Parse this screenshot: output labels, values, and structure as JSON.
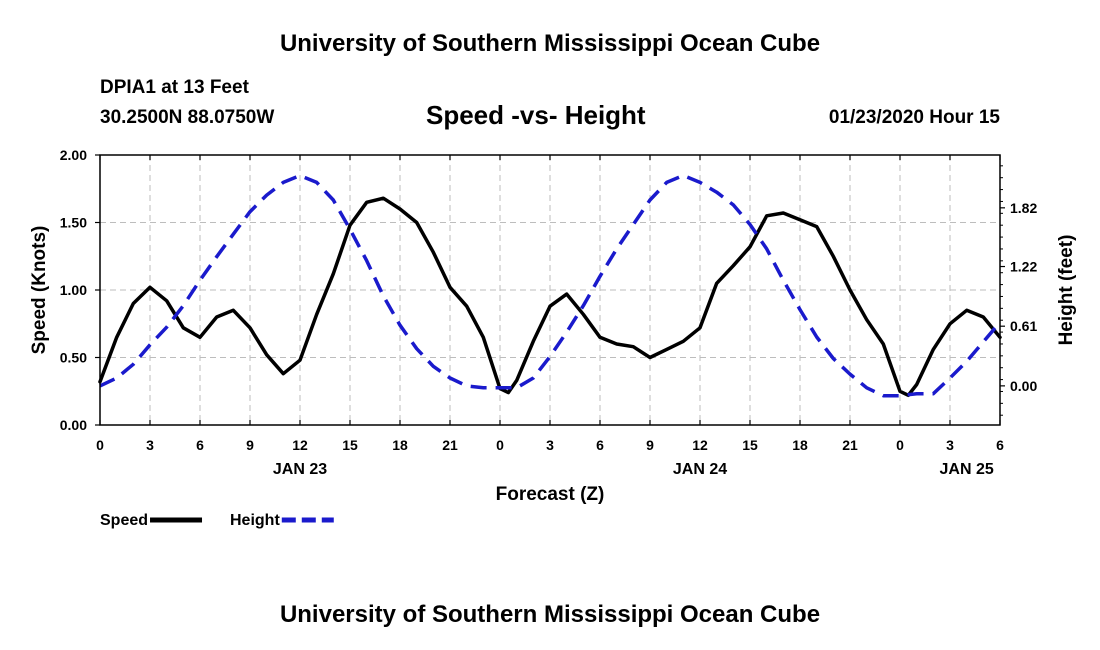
{
  "header": {
    "title": "University of Southern Mississippi Ocean Cube",
    "station": "DPIA1 at 13 Feet",
    "coords": "30.2500N 88.0750W",
    "date": "01/23/2020 Hour 15"
  },
  "footer": {
    "title": "University of Southern Mississippi Ocean Cube"
  },
  "chart_data": {
    "type": "line",
    "title": "Speed -vs- Height",
    "xlabel": "Forecast (Z)",
    "ylabel": "Speed (Knots)",
    "y2label": "Height (feet)",
    "x_units": "hours from 2020-01-23 00Z",
    "xlim": [
      0,
      54
    ],
    "ylim": [
      0,
      2.0
    ],
    "y2lim": [
      -0.4,
      2.36
    ],
    "x_ticks": [
      {
        "x": 0,
        "label": "0"
      },
      {
        "x": 3,
        "label": "3"
      },
      {
        "x": 6,
        "label": "6"
      },
      {
        "x": 9,
        "label": "9"
      },
      {
        "x": 12,
        "label": "12"
      },
      {
        "x": 15,
        "label": "15"
      },
      {
        "x": 18,
        "label": "18"
      },
      {
        "x": 21,
        "label": "21"
      },
      {
        "x": 24,
        "label": "0"
      },
      {
        "x": 27,
        "label": "3"
      },
      {
        "x": 30,
        "label": "6"
      },
      {
        "x": 33,
        "label": "9"
      },
      {
        "x": 36,
        "label": "12"
      },
      {
        "x": 39,
        "label": "15"
      },
      {
        "x": 42,
        "label": "18"
      },
      {
        "x": 45,
        "label": "21"
      },
      {
        "x": 48,
        "label": "0"
      },
      {
        "x": 51,
        "label": "3"
      },
      {
        "x": 54,
        "label": "6"
      }
    ],
    "date_labels": [
      {
        "x": 12,
        "label": "JAN 23"
      },
      {
        "x": 36,
        "label": "JAN 24"
      },
      {
        "x": 52,
        "label": "JAN 25"
      }
    ],
    "y_ticks": [
      {
        "v": 0.0,
        "label": "0.00"
      },
      {
        "v": 0.5,
        "label": "0.50"
      },
      {
        "v": 1.0,
        "label": "1.00"
      },
      {
        "v": 1.5,
        "label": "1.50"
      },
      {
        "v": 2.0,
        "label": "2.00"
      }
    ],
    "y2_ticks": [
      {
        "v": 0.0,
        "label": "0.00"
      },
      {
        "v": 0.61,
        "label": "0.61"
      },
      {
        "v": 1.22,
        "label": "1.22"
      },
      {
        "v": 1.82,
        "label": "1.82"
      }
    ],
    "grid": true,
    "legend": [
      {
        "name": "Speed",
        "color": "#000000",
        "style": "solid"
      },
      {
        "name": "Height",
        "color": "#1a1acc",
        "style": "dashed"
      }
    ],
    "series": [
      {
        "name": "Speed",
        "axis": "left",
        "color": "#000000",
        "style": "solid",
        "x": [
          0,
          1,
          2,
          3,
          4,
          5,
          6,
          7,
          8,
          9,
          10,
          11,
          12,
          13,
          14,
          15,
          16,
          17,
          18,
          19,
          20,
          21,
          22,
          23,
          24,
          24.5,
          25,
          26,
          27,
          28,
          29,
          30,
          31,
          32,
          33,
          34,
          35,
          36,
          37,
          38,
          39,
          40,
          41,
          42,
          43,
          44,
          45,
          46,
          47,
          48,
          48.5,
          49,
          50,
          51,
          52,
          53,
          54
        ],
        "values": [
          0.32,
          0.65,
          0.9,
          1.02,
          0.92,
          0.72,
          0.65,
          0.8,
          0.85,
          0.72,
          0.52,
          0.38,
          0.48,
          0.82,
          1.12,
          1.48,
          1.65,
          1.68,
          1.6,
          1.5,
          1.28,
          1.02,
          0.88,
          0.65,
          0.27,
          0.24,
          0.33,
          0.62,
          0.88,
          0.97,
          0.82,
          0.65,
          0.6,
          0.58,
          0.5,
          0.56,
          0.62,
          0.72,
          1.05,
          1.18,
          1.32,
          1.55,
          1.57,
          1.52,
          1.47,
          1.25,
          1.0,
          0.78,
          0.6,
          0.25,
          0.22,
          0.3,
          0.56,
          0.75,
          0.85,
          0.8,
          0.65
        ]
      },
      {
        "name": "Height",
        "axis": "right",
        "color": "#1a1acc",
        "style": "dashed",
        "x": [
          0,
          1,
          2,
          3,
          4,
          5,
          6,
          7,
          8,
          9,
          10,
          11,
          12,
          13,
          14,
          15,
          16,
          17,
          18,
          19,
          20,
          21,
          22,
          23,
          24,
          25,
          26,
          27,
          28,
          29,
          30,
          31,
          32,
          33,
          34,
          35,
          36,
          37,
          38,
          39,
          40,
          41,
          42,
          43,
          44,
          45,
          46,
          47,
          48,
          49,
          50,
          51,
          52,
          53,
          54
        ],
        "values": [
          0.0,
          0.08,
          0.22,
          0.42,
          0.6,
          0.82,
          1.08,
          1.32,
          1.55,
          1.78,
          1.95,
          2.08,
          2.15,
          2.08,
          1.9,
          1.6,
          1.28,
          0.92,
          0.62,
          0.38,
          0.2,
          0.08,
          0.0,
          -0.02,
          -0.02,
          -0.02,
          0.08,
          0.3,
          0.55,
          0.82,
          1.12,
          1.4,
          1.65,
          1.9,
          2.08,
          2.15,
          2.08,
          1.98,
          1.85,
          1.65,
          1.4,
          1.08,
          0.78,
          0.5,
          0.28,
          0.12,
          -0.02,
          -0.1,
          -0.1,
          -0.08,
          -0.08,
          0.08,
          0.25,
          0.45,
          0.65
        ]
      }
    ]
  }
}
